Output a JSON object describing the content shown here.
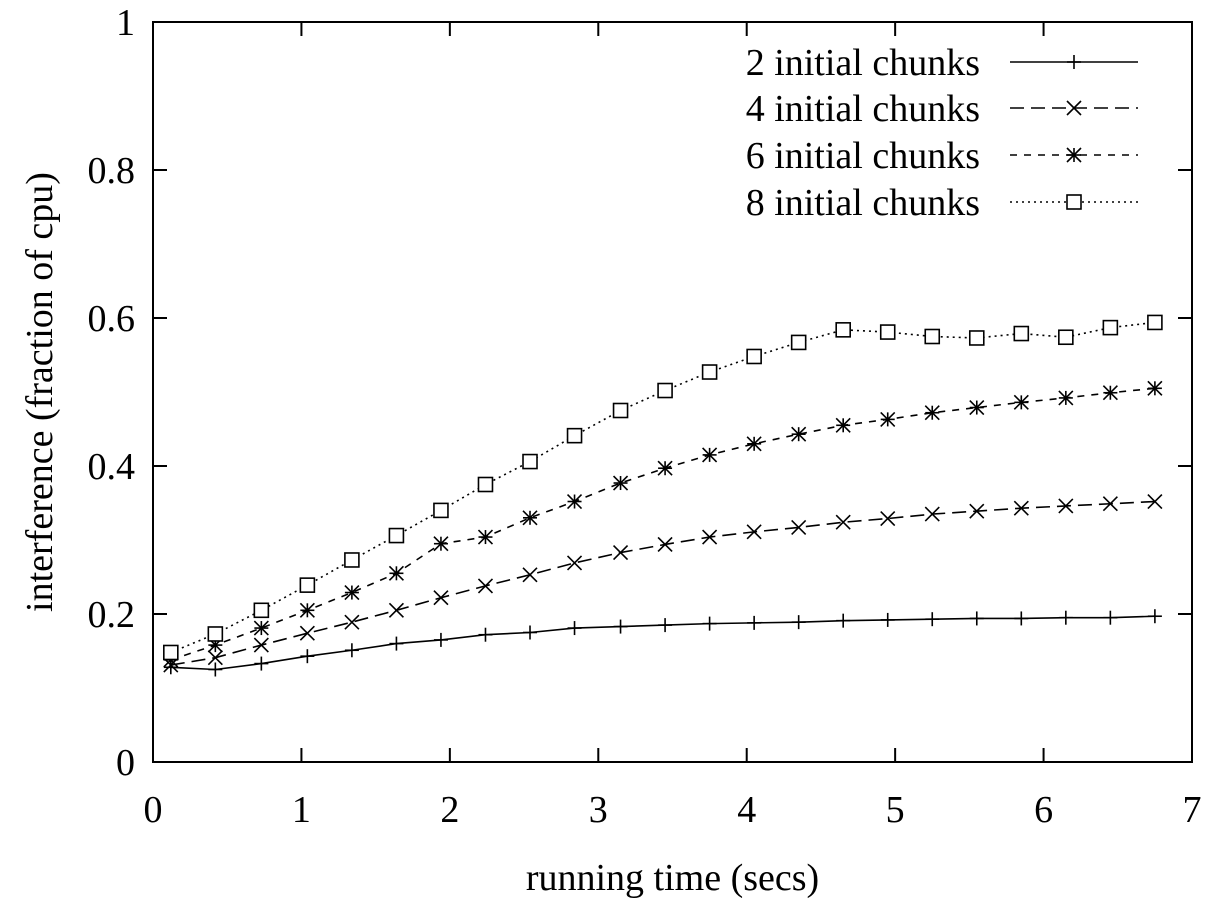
{
  "chart_data": {
    "type": "line",
    "xlabel": "running time (secs)",
    "ylabel": "interference (fraction of cpu)",
    "xlim": [
      0,
      7
    ],
    "ylim": [
      0,
      1
    ],
    "xticks": [
      "0",
      "1",
      "2",
      "3",
      "4",
      "5",
      "6",
      "7"
    ],
    "yticks": [
      "0",
      "0.2",
      "0.4",
      "0.6",
      "0.8",
      "1"
    ],
    "grid": false,
    "legend_position": "top-right",
    "x": [
      0.12,
      0.42,
      0.73,
      1.04,
      1.34,
      1.64,
      1.94,
      2.24,
      2.54,
      2.84,
      3.15,
      3.45,
      3.75,
      4.05,
      4.35,
      4.65,
      4.95,
      5.25,
      5.55,
      5.85,
      6.15,
      6.45,
      6.75
    ],
    "series": [
      {
        "name": "2 initial chunks",
        "marker": "plus",
        "dash": "solid",
        "values": [
          0.128,
          0.125,
          0.133,
          0.143,
          0.151,
          0.16,
          0.165,
          0.172,
          0.175,
          0.181,
          0.183,
          0.185,
          0.187,
          0.188,
          0.189,
          0.191,
          0.192,
          0.193,
          0.194,
          0.194,
          0.195,
          0.195,
          0.197
        ]
      },
      {
        "name": "4 initial chunks",
        "marker": "cross",
        "dash": "dashed",
        "values": [
          0.131,
          0.141,
          0.158,
          0.174,
          0.189,
          0.205,
          0.222,
          0.238,
          0.253,
          0.269,
          0.283,
          0.294,
          0.304,
          0.311,
          0.317,
          0.324,
          0.329,
          0.335,
          0.339,
          0.343,
          0.346,
          0.349,
          0.352
        ]
      },
      {
        "name": "6 initial chunks",
        "marker": "star",
        "dash": "short-dashed",
        "values": [
          0.138,
          0.158,
          0.181,
          0.205,
          0.229,
          0.255,
          0.295,
          0.304,
          0.33,
          0.352,
          0.377,
          0.397,
          0.415,
          0.43,
          0.443,
          0.455,
          0.463,
          0.472,
          0.479,
          0.486,
          0.492,
          0.499,
          0.505
        ]
      },
      {
        "name": "8 initial chunks",
        "marker": "square",
        "dash": "dotted",
        "values": [
          0.148,
          0.173,
          0.205,
          0.239,
          0.273,
          0.306,
          0.34,
          0.375,
          0.406,
          0.441,
          0.475,
          0.502,
          0.527,
          0.548,
          0.567,
          0.584,
          0.581,
          0.575,
          0.573,
          0.579,
          0.574,
          0.587,
          0.594
        ]
      }
    ]
  }
}
